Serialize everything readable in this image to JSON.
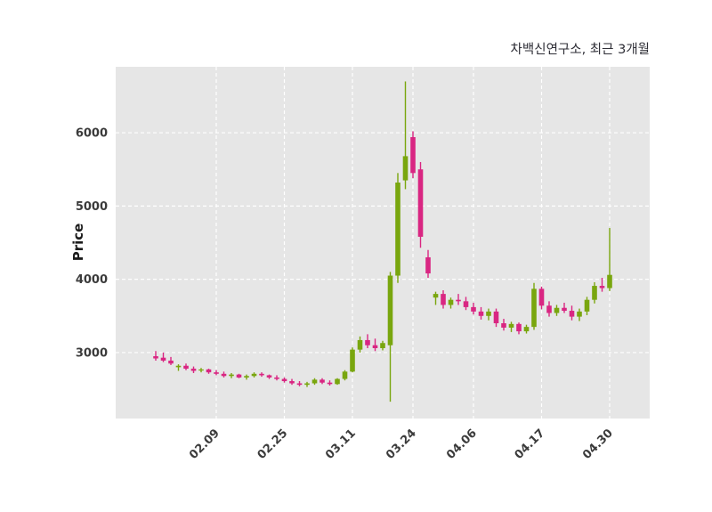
{
  "title": "차백신연구소, 최근 3개월",
  "ylabel": "Price",
  "chart_data": {
    "type": "candlestick",
    "title": "차백신연구소, 최근 3개월",
    "ylabel": "Price",
    "xlabel": "",
    "ylim": [
      2100,
      6900
    ],
    "y_ticks": [
      3000,
      4000,
      5000,
      6000
    ],
    "x_ticks": [
      {
        "index": 8,
        "label": "02.09"
      },
      {
        "index": 17,
        "label": "02.25"
      },
      {
        "index": 26,
        "label": "03.11"
      },
      {
        "index": 34,
        "label": "03.24"
      },
      {
        "index": 42,
        "label": "04.06"
      },
      {
        "index": 51,
        "label": "04.17"
      },
      {
        "index": 60,
        "label": "04.30"
      }
    ],
    "grid": "white dashed lines on light gray panel",
    "legend": "none",
    "plot_bg": "#e6e6e6",
    "grid_color": "#ffffff",
    "up_color": "#79a60e",
    "down_color": "#d92682",
    "candles_format": "[open, high, low, close]",
    "candles": [
      [
        2950,
        3020,
        2890,
        2920
      ],
      [
        2930,
        3000,
        2870,
        2890
      ],
      [
        2890,
        2940,
        2830,
        2850
      ],
      [
        2800,
        2840,
        2750,
        2820
      ],
      [
        2820,
        2850,
        2760,
        2780
      ],
      [
        2780,
        2810,
        2720,
        2750
      ],
      [
        2760,
        2790,
        2730,
        2770
      ],
      [
        2770,
        2780,
        2710,
        2730
      ],
      [
        2730,
        2760,
        2690,
        2710
      ],
      [
        2710,
        2740,
        2660,
        2680
      ],
      [
        2680,
        2720,
        2650,
        2700
      ],
      [
        2700,
        2710,
        2650,
        2660
      ],
      [
        2660,
        2700,
        2630,
        2680
      ],
      [
        2680,
        2730,
        2660,
        2710
      ],
      [
        2710,
        2730,
        2670,
        2690
      ],
      [
        2690,
        2700,
        2640,
        2660
      ],
      [
        2660,
        2690,
        2620,
        2640
      ],
      [
        2640,
        2660,
        2590,
        2610
      ],
      [
        2610,
        2640,
        2560,
        2580
      ],
      [
        2580,
        2610,
        2540,
        2560
      ],
      [
        2560,
        2600,
        2530,
        2580
      ],
      [
        2580,
        2650,
        2560,
        2630
      ],
      [
        2630,
        2650,
        2570,
        2590
      ],
      [
        2590,
        2620,
        2550,
        2570
      ],
      [
        2570,
        2650,
        2560,
        2640
      ],
      [
        2640,
        2760,
        2620,
        2740
      ],
      [
        2740,
        3070,
        2730,
        3040
      ],
      [
        3040,
        3220,
        3000,
        3170
      ],
      [
        3170,
        3250,
        3060,
        3100
      ],
      [
        3100,
        3190,
        3020,
        3060
      ],
      [
        3060,
        3160,
        3030,
        3130
      ],
      [
        3100,
        4100,
        2330,
        4050
      ],
      [
        4050,
        5450,
        3950,
        5320
      ],
      [
        5350,
        6700,
        5230,
        5680
      ],
      [
        5940,
        6020,
        5380,
        5450
      ],
      [
        5500,
        5600,
        4430,
        4580
      ],
      [
        4300,
        4400,
        4020,
        4080
      ],
      [
        3750,
        3830,
        3650,
        3800
      ],
      [
        3800,
        3850,
        3600,
        3650
      ],
      [
        3650,
        3750,
        3600,
        3720
      ],
      [
        3720,
        3800,
        3650,
        3700
      ],
      [
        3700,
        3760,
        3580,
        3620
      ],
      [
        3620,
        3680,
        3520,
        3560
      ],
      [
        3560,
        3620,
        3450,
        3500
      ],
      [
        3500,
        3600,
        3440,
        3560
      ],
      [
        3560,
        3600,
        3350,
        3400
      ],
      [
        3400,
        3460,
        3300,
        3340
      ],
      [
        3340,
        3420,
        3280,
        3390
      ],
      [
        3390,
        3410,
        3250,
        3290
      ],
      [
        3290,
        3380,
        3260,
        3350
      ],
      [
        3350,
        3950,
        3310,
        3870
      ],
      [
        3870,
        3900,
        3590,
        3640
      ],
      [
        3640,
        3700,
        3490,
        3540
      ],
      [
        3540,
        3650,
        3500,
        3610
      ],
      [
        3610,
        3680,
        3540,
        3570
      ],
      [
        3570,
        3640,
        3440,
        3490
      ],
      [
        3490,
        3600,
        3430,
        3560
      ],
      [
        3560,
        3760,
        3510,
        3720
      ],
      [
        3720,
        3960,
        3670,
        3910
      ],
      [
        3910,
        4020,
        3830,
        3880
      ],
      [
        3880,
        4700,
        3840,
        4060
      ]
    ]
  }
}
